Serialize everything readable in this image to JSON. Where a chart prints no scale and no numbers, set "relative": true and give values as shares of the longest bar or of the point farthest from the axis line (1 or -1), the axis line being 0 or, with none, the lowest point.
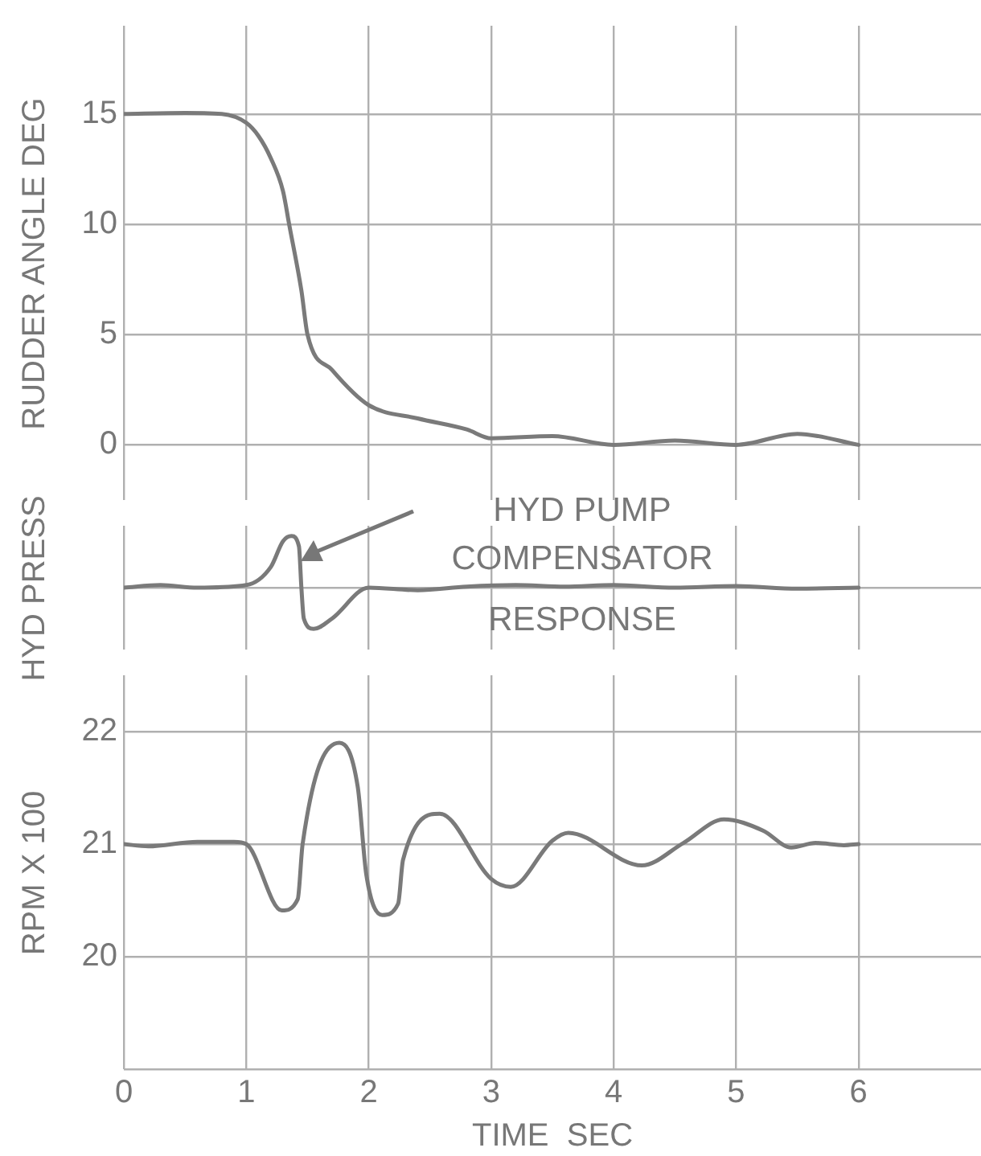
{
  "chart_data": [
    {
      "type": "line",
      "ylabel": "RUDDER ANGLE DEG",
      "x": [
        0,
        0.5,
        0.8,
        1.0,
        1.1,
        1.2,
        1.3,
        1.35,
        1.45,
        1.5,
        1.7,
        2.0,
        2.4,
        2.8,
        3.0,
        3.5,
        4.0,
        4.5,
        5.0,
        5.5,
        6.0
      ],
      "series": [
        {
          "color": "#7a7a7a",
          "values": [
            15,
            15.05,
            15,
            14.6,
            14,
            13,
            11.5,
            10,
            7,
            5,
            3.4,
            1.8,
            1.2,
            0.7,
            0.3,
            0.4,
            0,
            0.2,
            0,
            0.5,
            0
          ]
        }
      ],
      "xlim": [
        0,
        7
      ],
      "xticks": [
        0,
        1,
        2,
        3,
        4,
        5,
        6
      ],
      "ylim": [
        -2.5,
        19
      ],
      "yticks": [
        0,
        5,
        10,
        15
      ],
      "grid": true,
      "tick_labels": "y"
    },
    {
      "type": "line",
      "ylabel": "HYD PRESS",
      "relative": true,
      "x": [
        0,
        0.3,
        0.6,
        1.0,
        1.2,
        1.3,
        1.37,
        1.43,
        1.45,
        1.47,
        1.55,
        1.7,
        2.0,
        2.4,
        2.8,
        3.2,
        3.6,
        4.0,
        4.5,
        5.0,
        5.5,
        6.0
      ],
      "series": [
        {
          "color": "#7a7a7a",
          "values": [
            0,
            0.05,
            0,
            0.05,
            0.4,
            0.9,
            1,
            0.8,
            0,
            -0.6,
            -0.8,
            -0.6,
            0,
            -0.05,
            0.02,
            0.05,
            0.02,
            0.05,
            0,
            0.03,
            -0.02,
            0
          ]
        }
      ],
      "xlim": [
        0,
        7
      ],
      "xticks": [
        0,
        1,
        2,
        3,
        4,
        5,
        6
      ],
      "grid": "x",
      "tick_labels": false,
      "annotations": [
        "HYD PUMP\nCOMPENSATOR\nRESPONSE"
      ]
    },
    {
      "type": "line",
      "ylabel": "RPM X 100",
      "xlabel": "TIME  SEC",
      "x": [
        0,
        0.2,
        0.6,
        0.9,
        1.0,
        1.29,
        1.42,
        1.46,
        1.76,
        1.91,
        1.98,
        2.11,
        2.24,
        2.28,
        2.58,
        3.0,
        3.16,
        3.5,
        3.63,
        4.23,
        4.57,
        4.9,
        5.22,
        5.45,
        5.65,
        5.88,
        6.0
      ],
      "series": [
        {
          "color": "#7a7a7a",
          "values": [
            21,
            20.98,
            21.02,
            21.02,
            21,
            20.41,
            20.51,
            21,
            21.9,
            21.51,
            20.73,
            20.37,
            20.47,
            20.86,
            21.27,
            20.69,
            20.62,
            21.03,
            21.1,
            20.81,
            21.01,
            21.22,
            21.12,
            20.97,
            21.01,
            20.99,
            21
          ]
        }
      ],
      "xlim": [
        0,
        7
      ],
      "xticks": [
        0,
        1,
        2,
        3,
        4,
        5,
        6
      ],
      "ylim": [
        19,
        22.5
      ],
      "yticks": [
        {
          "value": 19,
          "label": null
        },
        20,
        21,
        22
      ],
      "grid": true
    }
  ]
}
